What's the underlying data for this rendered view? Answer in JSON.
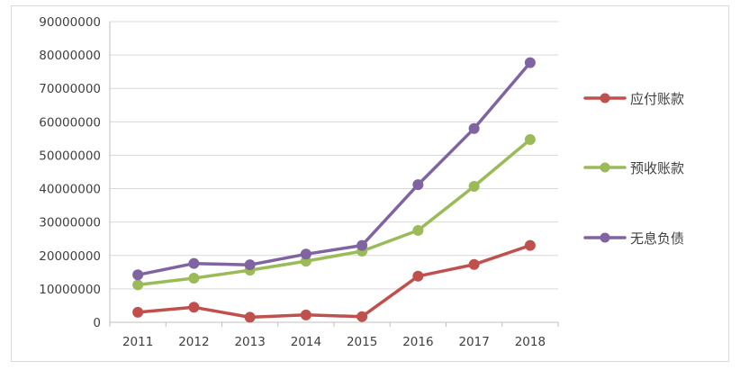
{
  "chart_data": {
    "type": "line",
    "title": "",
    "xlabel": "",
    "ylabel": "",
    "categories": [
      "2011",
      "2012",
      "2013",
      "2014",
      "2015",
      "2016",
      "2017",
      "2018"
    ],
    "ylim": [
      0,
      90000000
    ],
    "yticks": [
      "0",
      "10000000",
      "20000000",
      "30000000",
      "40000000",
      "50000000",
      "60000000",
      "70000000",
      "80000000",
      "90000000"
    ],
    "grid": true,
    "legend_position": "right",
    "series": [
      {
        "name": "应付账款",
        "color": "#c0504d",
        "values": [
          3000000,
          4500000,
          1500000,
          2200000,
          1700000,
          13800000,
          17300000,
          23000000
        ]
      },
      {
        "name": "预收账款",
        "color": "#9bbb59",
        "values": [
          11200000,
          13200000,
          15600000,
          18300000,
          21300000,
          27500000,
          40700000,
          54700000
        ]
      },
      {
        "name": "无息负债",
        "color": "#8064a2",
        "values": [
          14200000,
          17600000,
          17200000,
          20400000,
          23000000,
          41200000,
          58000000,
          77700000
        ]
      }
    ]
  }
}
